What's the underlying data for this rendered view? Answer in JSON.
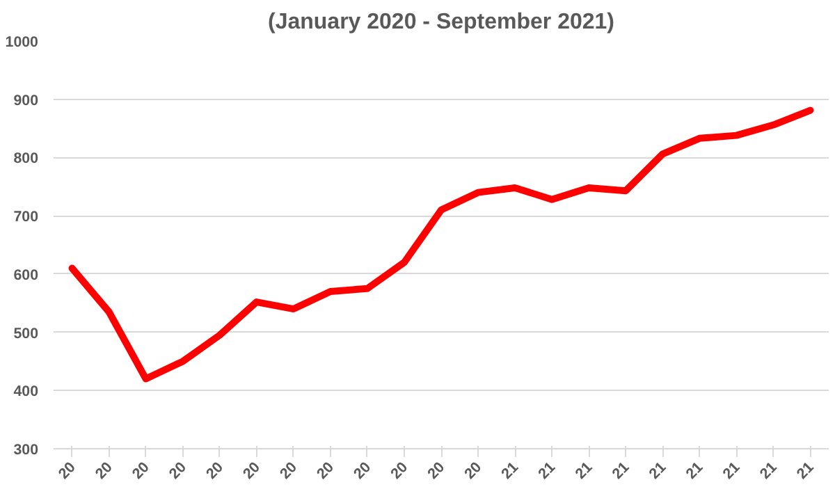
{
  "chart_data": {
    "type": "line",
    "title": "(January 2020 - September 2021)",
    "categories": [
      "20",
      "20",
      "20",
      "20",
      "20",
      "20",
      "20",
      "20",
      "20",
      "20",
      "20",
      "20",
      "21",
      "21",
      "21",
      "21",
      "21",
      "21",
      "21",
      "21",
      "21"
    ],
    "series": [
      {
        "color": "#ff0000",
        "values": [
          610,
          535,
          420,
          450,
          495,
          552,
          540,
          570,
          575,
          620,
          710,
          740,
          748,
          728,
          748,
          743,
          806,
          833,
          838,
          856,
          881
        ]
      }
    ],
    "ylim": [
      300,
      1000
    ],
    "yticks": [
      300,
      400,
      500,
      600,
      700,
      800,
      900,
      1000
    ],
    "grid": "y",
    "marker": "none",
    "line_style": "solid"
  }
}
